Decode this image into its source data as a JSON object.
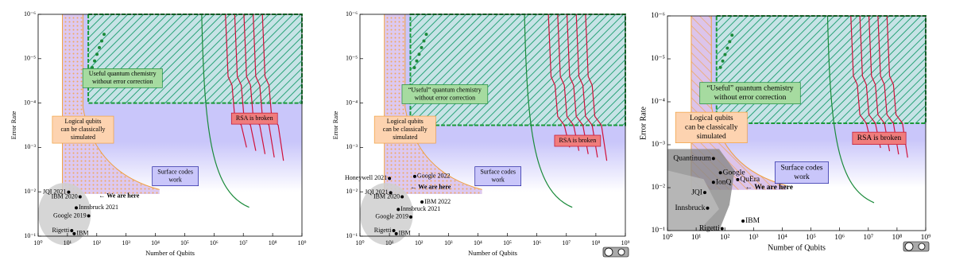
{
  "chart_data": [
    {
      "type": "scatter",
      "x_label": "Number of Qubits",
      "y_label": "Error Rate",
      "log_scale": true,
      "xlim": [
        1,
        1000000000
      ],
      "ylim": [
        0.1,
        1e-06
      ],
      "xticks": [
        {
          "value": 1,
          "label": "10⁰"
        },
        {
          "value": 10,
          "label": "10¹"
        },
        {
          "value": 100,
          "label": "10²"
        },
        {
          "value": 1000,
          "label": "10³"
        },
        {
          "value": 10000,
          "label": "10⁴"
        },
        {
          "value": 100000,
          "label": "10⁵"
        },
        {
          "value": 1000000,
          "label": "10⁶"
        },
        {
          "value": 10000000,
          "label": "10⁷"
        },
        {
          "value": 100000000,
          "label": "10⁸"
        },
        {
          "value": 1000000000,
          "label": "10⁹"
        }
      ],
      "yticks": [
        {
          "value": 1e-06,
          "label": "10⁻⁶"
        },
        {
          "value": 1e-05,
          "label": "10⁻⁵"
        },
        {
          "value": 0.0001,
          "label": "10⁻⁴"
        },
        {
          "value": 0.001,
          "label": "10⁻³"
        },
        {
          "value": 0.01,
          "label": "10⁻²"
        },
        {
          "value": 0.1,
          "label": "10⁻¹"
        }
      ],
      "color": "#000000",
      "point_labels": [
        "JQI 2021",
        "IBM 2020",
        "Innsbruck 2021",
        "Google 2019",
        "Rigetti",
        "IBM"
      ],
      "x": [
        11,
        27,
        20,
        53,
        14,
        17
      ],
      "values": [
        0.0102,
        0.013,
        0.023,
        0.035,
        0.075,
        0.088
      ],
      "here_label": "← We are here",
      "chemistry_label": [
        "Useful quantum chemistry",
        "without error correction"
      ],
      "classical_label": [
        "Logical qubits",
        "can be classically",
        "simulated"
      ],
      "rsa_label": "RSA is broken",
      "surface_label": [
        "Surface codes",
        "work"
      ]
    },
    {
      "type": "scatter",
      "x_label": "Number of Qubits",
      "y_label": "Error Rate",
      "log_scale": true,
      "xlim": [
        1,
        1000000000
      ],
      "ylim": [
        0.1,
        1e-06
      ],
      "xticks": [
        {
          "value": 1,
          "label": "10⁰"
        },
        {
          "value": 10,
          "label": "10¹"
        },
        {
          "value": 100,
          "label": "10²"
        },
        {
          "value": 1000,
          "label": "10³"
        },
        {
          "value": 10000,
          "label": "10⁴"
        },
        {
          "value": 100000,
          "label": "10⁵"
        },
        {
          "value": 1000000,
          "label": "10⁶"
        },
        {
          "value": 10000000,
          "label": "10⁷"
        },
        {
          "value": 100000000,
          "label": "10⁸"
        },
        {
          "value": 1000000000,
          "label": "10⁹"
        }
      ],
      "yticks": [
        {
          "value": 1e-06,
          "label": "10⁻⁶"
        },
        {
          "value": 1e-05,
          "label": "10⁻⁵"
        },
        {
          "value": 0.0001,
          "label": "10⁻⁴"
        },
        {
          "value": 0.001,
          "label": "10⁻³"
        },
        {
          "value": 0.01,
          "label": "10⁻²"
        },
        {
          "value": 0.1,
          "label": "10⁻¹"
        }
      ],
      "color": "#000000",
      "point_labels": [
        "Honeywell 2021",
        "Google 2022",
        "JQI 2021",
        "IBM 2020",
        "IBM 2022",
        "Innsbruck 2021",
        "Google 2019",
        "Rigetti",
        "IBM"
      ],
      "x": [
        10,
        72,
        11,
        27,
        127,
        20,
        53,
        14,
        17
      ],
      "values": [
        0.005,
        0.0045,
        0.0105,
        0.013,
        0.017,
        0.025,
        0.037,
        0.075,
        0.088
      ],
      "here_label": "← We are here",
      "chemistry_label": [
        "“Useful” quantum chemistry",
        "without error correction"
      ],
      "classical_label": [
        "Logical qubits",
        "can be classically",
        "simulated"
      ],
      "rsa_label": "RSA is broken",
      "surface_label": [
        "Surface codes",
        "work"
      ]
    },
    {
      "type": "scatter",
      "x_label": "Number of Qubits",
      "y_label": "Error Rate",
      "log_scale": true,
      "xlim": [
        1,
        1000000000
      ],
      "ylim": [
        0.1,
        1e-06
      ],
      "xticks": [
        {
          "value": 1,
          "label": "10⁰"
        },
        {
          "value": 10,
          "label": "10¹"
        },
        {
          "value": 100,
          "label": "10²"
        },
        {
          "value": 1000,
          "label": "10³"
        },
        {
          "value": 10000,
          "label": "10⁴"
        },
        {
          "value": 100000,
          "label": "10⁵"
        },
        {
          "value": 1000000,
          "label": "10⁶"
        },
        {
          "value": 10000000,
          "label": "10⁷"
        },
        {
          "value": 100000000,
          "label": "10⁸"
        },
        {
          "value": 1000000000,
          "label": "10⁹"
        }
      ],
      "yticks": [
        {
          "value": 1e-06,
          "label": "10⁻⁶"
        },
        {
          "value": 1e-05,
          "label": "10⁻⁵"
        },
        {
          "value": 0.0001,
          "label": "10⁻⁴"
        },
        {
          "value": 0.001,
          "label": "10⁻³"
        },
        {
          "value": 0.01,
          "label": "10⁻²"
        },
        {
          "value": 0.1,
          "label": "10⁻¹"
        }
      ],
      "color": "#000000",
      "point_labels": [
        "Quantinuum",
        "Google",
        "IonQ",
        "QuEra",
        "JQI",
        "Innsbruck",
        "Rigetti",
        "IBM"
      ],
      "x": [
        40,
        70,
        40,
        280,
        20,
        25,
        80,
        430
      ],
      "values": [
        0.0021,
        0.0045,
        0.0075,
        0.0065,
        0.013,
        0.03,
        0.09,
        0.06
      ],
      "here_label": "← We are here",
      "chemistry_label": [
        "“Useful” quantum chemistry",
        "without error correction"
      ],
      "classical_label": [
        "Logical qubits",
        "can be classically",
        "simulated"
      ],
      "rsa_label": "RSA is broken",
      "surface_label": [
        "Surface codes",
        "work"
      ]
    }
  ]
}
